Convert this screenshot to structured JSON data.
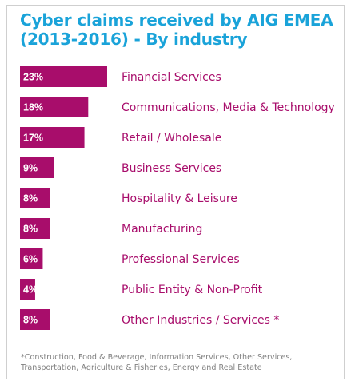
{
  "title_lines": [
    "Cyber claims received by AIG EMEA",
    "(2013-2016) - By industry"
  ],
  "footnote": "*Construction, Food & Beverage, Information Services, Other Services, Transportation, Agriculture & Fisheries, Energy and Real Estate",
  "colors": {
    "bar": "#a80d6b",
    "title": "#1aa3d9",
    "label": "#a80d6b",
    "value_text": "#ffffff"
  },
  "chart_data": {
    "type": "bar",
    "orientation": "horizontal",
    "title": "Cyber claims received by AIG EMEA (2013-2016) - By industry",
    "categories": [
      "Financial Services",
      "Communications, Media & Technology",
      "Retail / Wholesale",
      "Business Services",
      "Hospitality & Leisure",
      "Manufacturing",
      "Professional Services",
      "Public Entity & Non-Profit",
      "Other Industries / Services *"
    ],
    "values": [
      23,
      18,
      17,
      9,
      8,
      8,
      6,
      4,
      8
    ],
    "value_labels": [
      "23%",
      "18%",
      "17%",
      "9%",
      "8%",
      "8%",
      "6%",
      "4%",
      "8%"
    ],
    "unit": "%",
    "grid": false,
    "legend": "none"
  }
}
